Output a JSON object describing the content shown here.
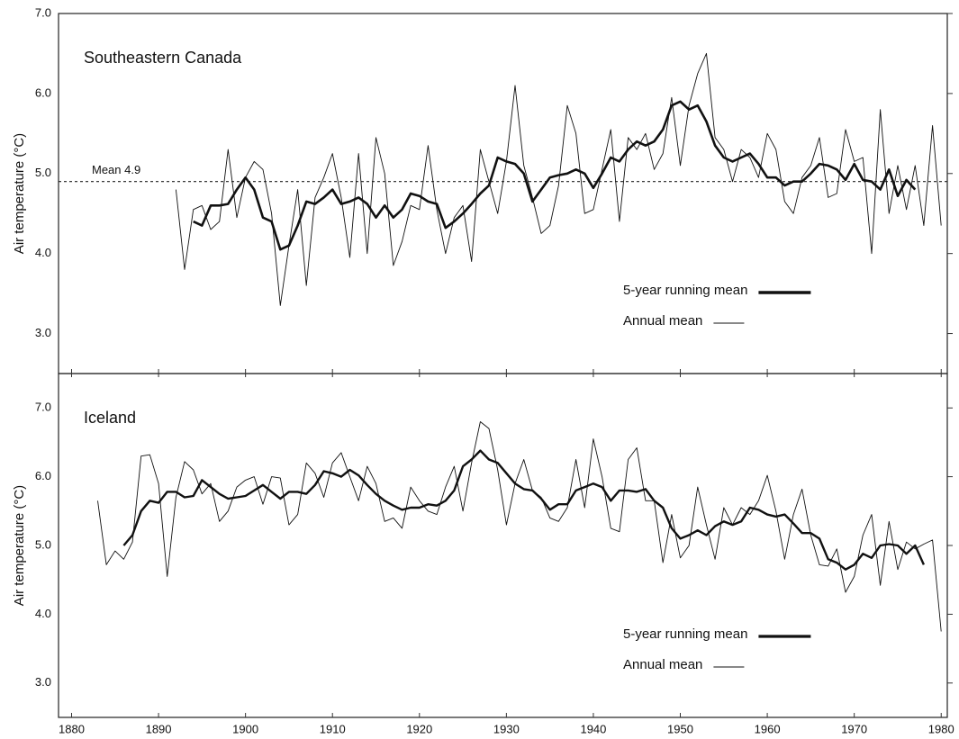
{
  "chart_data": [
    {
      "type": "line",
      "title": "Southeastern Canada",
      "y_label": "Air temperature (°C)",
      "xlim": [
        1878.5,
        1980.7
      ],
      "ylim": [
        2.5,
        7.0
      ],
      "yticks": [
        {
          "value": 3,
          "label": "3.0"
        },
        {
          "value": 4,
          "label": "4.0"
        },
        {
          "value": 5,
          "label": "5.0"
        },
        {
          "value": 6,
          "label": "6.0"
        },
        {
          "value": 7,
          "label": "7.0"
        }
      ],
      "mean_line": {
        "value": 4.9,
        "label": "Mean 4.9"
      },
      "legend": "lower right",
      "x": [
        1892,
        1893,
        1894,
        1895,
        1896,
        1897,
        1898,
        1899,
        1900,
        1901,
        1902,
        1903,
        1904,
        1905,
        1906,
        1907,
        1908,
        1909,
        1910,
        1911,
        1912,
        1913,
        1914,
        1915,
        1916,
        1917,
        1918,
        1919,
        1920,
        1921,
        1922,
        1923,
        1924,
        1925,
        1926,
        1927,
        1928,
        1929,
        1930,
        1931,
        1932,
        1933,
        1934,
        1935,
        1936,
        1937,
        1938,
        1939,
        1940,
        1941,
        1942,
        1943,
        1944,
        1945,
        1946,
        1947,
        1948,
        1949,
        1950,
        1951,
        1952,
        1953,
        1954,
        1955,
        1956,
        1957,
        1958,
        1959,
        1960,
        1961,
        1962,
        1963,
        1964,
        1965,
        1966,
        1967,
        1968,
        1969,
        1970,
        1971,
        1972,
        1973,
        1974,
        1975,
        1976,
        1977,
        1978,
        1979,
        1980
      ],
      "series": [
        {
          "name": "5-year running mean",
          "color": "#111111",
          "width": 2.6,
          "values": [
            null,
            null,
            4.4,
            4.35,
            4.6,
            4.6,
            4.62,
            4.8,
            4.95,
            4.8,
            4.45,
            4.4,
            4.05,
            4.1,
            4.35,
            4.65,
            4.62,
            4.7,
            4.8,
            4.62,
            4.65,
            4.7,
            4.62,
            4.45,
            4.6,
            4.45,
            4.55,
            4.75,
            4.72,
            4.65,
            4.62,
            4.32,
            4.4,
            4.5,
            4.62,
            4.75,
            4.85,
            5.2,
            5.15,
            5.12,
            5.0,
            4.65,
            4.8,
            4.95,
            4.98,
            5.0,
            5.05,
            5.0,
            4.82,
            5.0,
            5.2,
            5.15,
            5.3,
            5.4,
            5.35,
            5.4,
            5.55,
            5.85,
            5.9,
            5.8,
            5.85,
            5.65,
            5.35,
            5.2,
            5.15,
            5.2,
            5.25,
            5.12,
            4.95,
            4.95,
            4.85,
            4.9,
            4.9,
            5.0,
            5.12,
            5.1,
            5.05,
            4.92,
            5.12,
            4.92,
            4.9,
            4.8,
            5.05,
            4.72,
            4.92,
            4.8,
            null,
            null,
            null
          ]
        },
        {
          "name": "Annual mean",
          "color": "#111111",
          "width": 0.9,
          "values": [
            4.8,
            3.8,
            4.55,
            4.6,
            4.3,
            4.4,
            5.3,
            4.45,
            4.95,
            5.15,
            5.05,
            4.5,
            3.35,
            4.1,
            4.8,
            3.6,
            4.7,
            4.95,
            5.25,
            4.7,
            3.95,
            5.25,
            4.0,
            5.45,
            5.0,
            3.85,
            4.15,
            4.6,
            4.55,
            5.35,
            4.55,
            4.0,
            4.45,
            4.6,
            3.9,
            5.3,
            4.9,
            4.5,
            5.15,
            6.1,
            5.1,
            4.7,
            4.25,
            4.35,
            4.85,
            5.85,
            5.5,
            4.5,
            4.55,
            5.05,
            5.55,
            4.4,
            5.45,
            5.3,
            5.5,
            5.05,
            5.25,
            5.95,
            5.1,
            5.85,
            6.25,
            6.5,
            5.45,
            5.3,
            4.9,
            5.3,
            5.2,
            4.95,
            5.5,
            5.3,
            4.65,
            4.5,
            4.95,
            5.1,
            5.45,
            4.7,
            4.75,
            5.55,
            5.15,
            5.2,
            4.0,
            5.8,
            4.5,
            5.1,
            4.55,
            5.1,
            4.35,
            5.6,
            4.35
          ]
        }
      ]
    },
    {
      "type": "line",
      "title": "Iceland",
      "y_label": "Air temperature (°C)",
      "xlim": [
        1878.5,
        1980.7
      ],
      "ylim": [
        2.5,
        7.5
      ],
      "yticks": [
        {
          "value": 3,
          "label": "3.0"
        },
        {
          "value": 4,
          "label": "4.0"
        },
        {
          "value": 5,
          "label": "5.0"
        },
        {
          "value": 6,
          "label": "6.0"
        },
        {
          "value": 7,
          "label": "7.0"
        }
      ],
      "xticks": [
        1880,
        1890,
        1900,
        1910,
        1920,
        1930,
        1940,
        1950,
        1960,
        1970,
        1980
      ],
      "legend": "lower right",
      "x": [
        1883,
        1884,
        1885,
        1886,
        1887,
        1888,
        1889,
        1890,
        1891,
        1892,
        1893,
        1894,
        1895,
        1896,
        1897,
        1898,
        1899,
        1900,
        1901,
        1902,
        1903,
        1904,
        1905,
        1906,
        1907,
        1908,
        1909,
        1910,
        1911,
        1912,
        1913,
        1914,
        1915,
        1916,
        1917,
        1918,
        1919,
        1920,
        1921,
        1922,
        1923,
        1924,
        1925,
        1926,
        1927,
        1928,
        1929,
        1930,
        1931,
        1932,
        1933,
        1934,
        1935,
        1936,
        1937,
        1938,
        1939,
        1940,
        1941,
        1942,
        1943,
        1944,
        1945,
        1946,
        1947,
        1948,
        1949,
        1950,
        1951,
        1952,
        1953,
        1954,
        1955,
        1956,
        1957,
        1958,
        1959,
        1960,
        1961,
        1962,
        1963,
        1964,
        1965,
        1966,
        1967,
        1968,
        1969,
        1970,
        1971,
        1972,
        1973,
        1974,
        1975,
        1976,
        1977,
        1978,
        1979,
        1980
      ],
      "series": [
        {
          "name": "5-year running mean",
          "color": "#111111",
          "width": 2.4,
          "values": [
            null,
            null,
            null,
            5.0,
            5.15,
            5.5,
            5.65,
            5.62,
            5.78,
            5.78,
            5.7,
            5.72,
            5.95,
            5.85,
            5.75,
            5.68,
            5.7,
            5.72,
            5.8,
            5.88,
            5.78,
            5.68,
            5.78,
            5.78,
            5.75,
            5.88,
            6.08,
            6.05,
            6.0,
            6.1,
            6.02,
            5.88,
            5.75,
            5.65,
            5.58,
            5.52,
            5.55,
            5.55,
            5.6,
            5.58,
            5.65,
            5.8,
            6.15,
            6.25,
            6.38,
            6.25,
            6.2,
            6.05,
            5.9,
            5.82,
            5.8,
            5.68,
            5.52,
            5.6,
            5.6,
            5.8,
            5.85,
            5.9,
            5.85,
            5.65,
            5.8,
            5.8,
            5.78,
            5.82,
            5.65,
            5.55,
            5.25,
            5.1,
            5.15,
            5.22,
            5.15,
            5.28,
            5.35,
            5.3,
            5.35,
            5.55,
            5.52,
            5.45,
            5.42,
            5.45,
            5.32,
            5.18,
            5.18,
            5.1,
            4.8,
            4.75,
            4.65,
            4.72,
            4.88,
            4.82,
            5.0,
            5.02,
            5.0,
            4.88,
            5.0,
            4.72,
            null,
            null
          ]
        },
        {
          "name": "Annual mean",
          "color": "#111111",
          "width": 0.9,
          "values": [
            5.65,
            4.72,
            4.92,
            4.8,
            5.05,
            6.3,
            6.32,
            5.9,
            4.55,
            5.7,
            6.22,
            6.1,
            5.75,
            5.9,
            5.35,
            5.5,
            5.85,
            5.95,
            6.0,
            5.6,
            6.0,
            5.98,
            5.3,
            5.45,
            6.2,
            6.05,
            5.7,
            6.2,
            6.35,
            6.0,
            5.65,
            6.15,
            5.9,
            5.35,
            5.4,
            5.25,
            5.85,
            5.65,
            5.5,
            5.45,
            5.85,
            6.15,
            5.5,
            6.2,
            6.8,
            6.7,
            6.1,
            5.3,
            5.9,
            6.25,
            5.8,
            5.7,
            5.4,
            5.35,
            5.55,
            6.25,
            5.55,
            6.55,
            6.0,
            5.25,
            5.2,
            6.25,
            6.42,
            5.65,
            5.65,
            4.75,
            5.45,
            4.82,
            5.0,
            5.85,
            5.3,
            4.8,
            5.55,
            5.3,
            5.55,
            5.45,
            5.65,
            6.02,
            5.5,
            4.8,
            5.45,
            5.82,
            5.15,
            4.72,
            4.7,
            4.95,
            4.32,
            4.55,
            5.15,
            5.45,
            4.42,
            5.35,
            4.65,
            5.05,
            4.95,
            5.02,
            5.08,
            3.75
          ]
        }
      ]
    }
  ]
}
